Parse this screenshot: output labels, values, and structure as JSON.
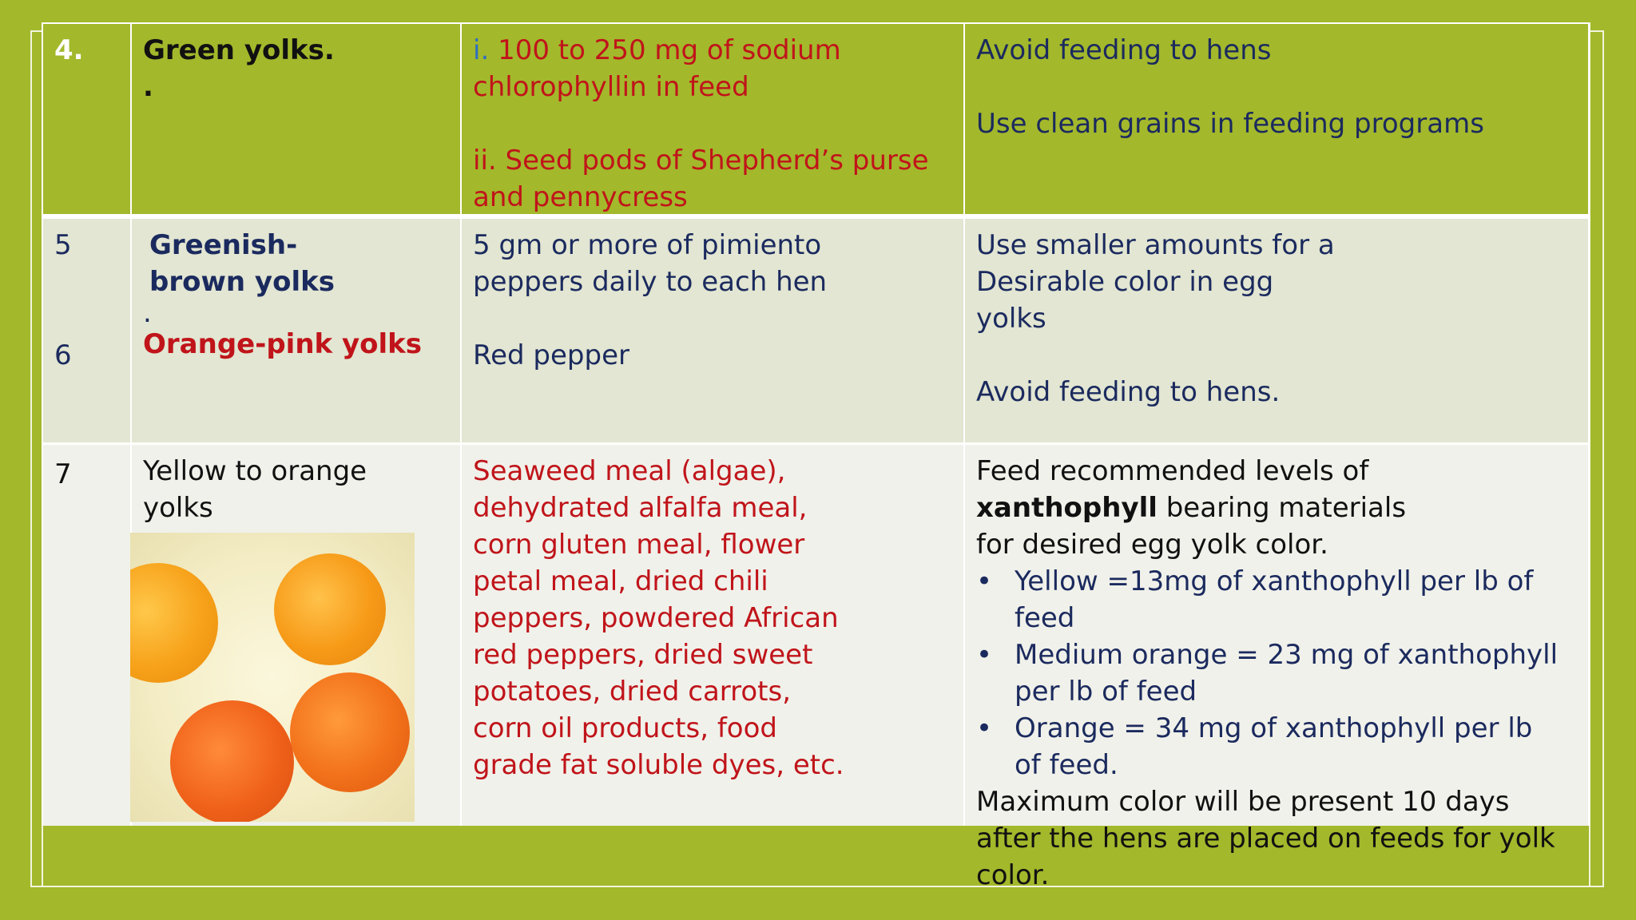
{
  "rows": [
    {
      "num": "4.",
      "name_line1": "Green yolks.",
      "name_line2": ".",
      "cause_i_prefix": "i.",
      "cause_i_text": " 100 to 250 mg of sodium chlorophyllin in feed",
      "cause_ii": "ii. Seed pods of Shepherd’s purse and pennycress",
      "remedy_1": "Avoid feeding to hens",
      "remedy_2": "Use clean grains in feeding programs"
    },
    {
      "num_5": "5",
      "num_6": "6",
      "name_5": "Greenish-brown yolks",
      "name_dot": ".",
      "name_6": "Orange-pink yolks",
      "cause_5": "5 gm or more of pimiento peppers daily to each hen",
      "cause_6": "Red pepper",
      "remedy_5": "Use smaller amounts for a Desirable color in egg yolks",
      "remedy_6": "Avoid feeding to hens."
    },
    {
      "num": "7",
      "name": "Yellow to orange yolks",
      "cause": "Seaweed meal (algae), dehydrated alfalfa meal, corn gluten meal, flower petal meal, dried chili peppers, powdered African red peppers, dried sweet potatoes, dried carrots, corn oil products, food grade fat soluble dyes, etc.",
      "remedy_intro_1": "Feed recommended levels of ",
      "remedy_intro_bold": "xanthophyll",
      "remedy_intro_2": " bearing materials for desired egg yolk color.",
      "bullets": [
        "Yellow =13mg of xanthophyll per lb of feed",
        "Medium orange = 23 mg of xanthophyll per lb of feed",
        "Orange = 34 mg of xanthophyll per lb of feed."
      ],
      "remedy_outro": "Maximum color will be present 10 days after the hens are placed on feeds for yolk color."
    }
  ],
  "colors": {
    "background": "#a3b82b",
    "navy_text": "#1b2a5e",
    "red_text": "#c0141a"
  }
}
